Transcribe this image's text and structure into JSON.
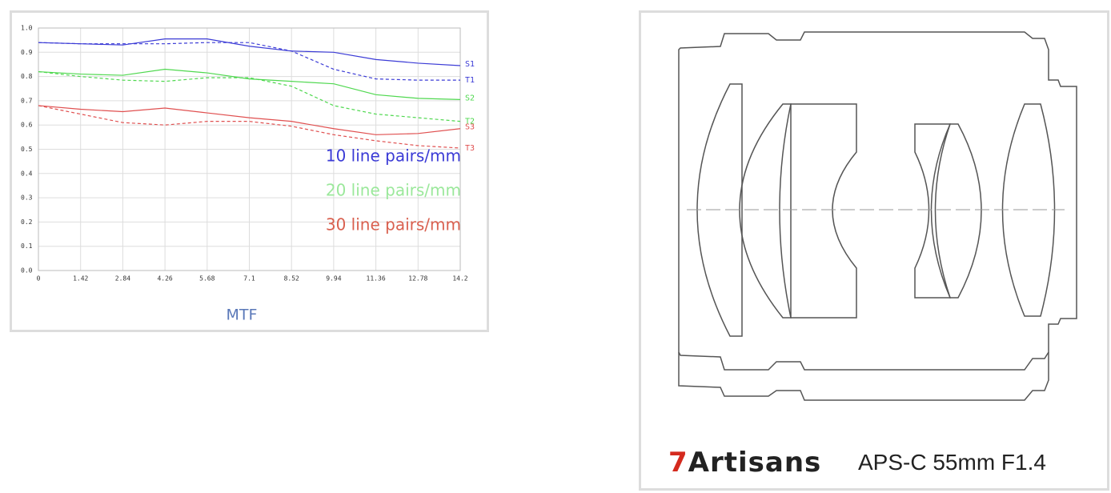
{
  "chart_data": {
    "type": "line",
    "x_axis_label": "MTF",
    "x": [
      0,
      1.42,
      2.84,
      4.26,
      5.68,
      7.1,
      8.52,
      9.94,
      11.36,
      12.78,
      14.2
    ],
    "xlim": [
      0,
      14.2
    ],
    "xticks": [
      0,
      1.42,
      2.84,
      4.26,
      5.68,
      7.1,
      8.52,
      9.94,
      11.36,
      12.78,
      14.2
    ],
    "ylim": [
      0,
      1
    ],
    "yticks": [
      {
        "value": 0,
        "label": "0.0"
      },
      0.1,
      0.2,
      0.3,
      0.4,
      0.5,
      0.6,
      0.7,
      0.8,
      0.9,
      {
        "value": 1,
        "label": "1.0"
      }
    ],
    "grid": true,
    "series": [
      {
        "name": "S1",
        "color": "#3b3bd6",
        "dashed": false,
        "values": [
          0.94,
          0.935,
          0.93,
          0.955,
          0.955,
          0.925,
          0.905,
          0.9,
          0.87,
          0.855,
          0.845
        ]
      },
      {
        "name": "T1",
        "color": "#3b3bd6",
        "dashed": true,
        "values": [
          0.94,
          0.935,
          0.935,
          0.935,
          0.94,
          0.94,
          0.905,
          0.83,
          0.79,
          0.785,
          0.785
        ]
      },
      {
        "name": "S2",
        "color": "#4fd84f",
        "dashed": false,
        "values": [
          0.82,
          0.81,
          0.805,
          0.83,
          0.815,
          0.79,
          0.78,
          0.77,
          0.725,
          0.71,
          0.705
        ]
      },
      {
        "name": "T2",
        "color": "#4fd84f",
        "dashed": true,
        "values": [
          0.82,
          0.8,
          0.785,
          0.78,
          0.795,
          0.795,
          0.76,
          0.68,
          0.645,
          0.63,
          0.615
        ]
      },
      {
        "name": "S3",
        "color": "#e05050",
        "dashed": false,
        "values": [
          0.68,
          0.665,
          0.655,
          0.67,
          0.65,
          0.63,
          0.615,
          0.585,
          0.56,
          0.565,
          0.585
        ]
      },
      {
        "name": "T3",
        "color": "#e05050",
        "dashed": true,
        "values": [
          0.68,
          0.645,
          0.61,
          0.6,
          0.615,
          0.615,
          0.595,
          0.56,
          0.535,
          0.515,
          0.505
        ]
      }
    ],
    "annotations": [
      {
        "text": "10 line pairs/mm",
        "color": "#3b3bd6"
      },
      {
        "text": "20 line pairs/mm",
        "color": "#9be89b"
      },
      {
        "text": "30 line pairs/mm",
        "color": "#d9604f"
      }
    ]
  },
  "product": {
    "brand": "7Artisans",
    "model": "APS-C 55mm F1.4"
  }
}
